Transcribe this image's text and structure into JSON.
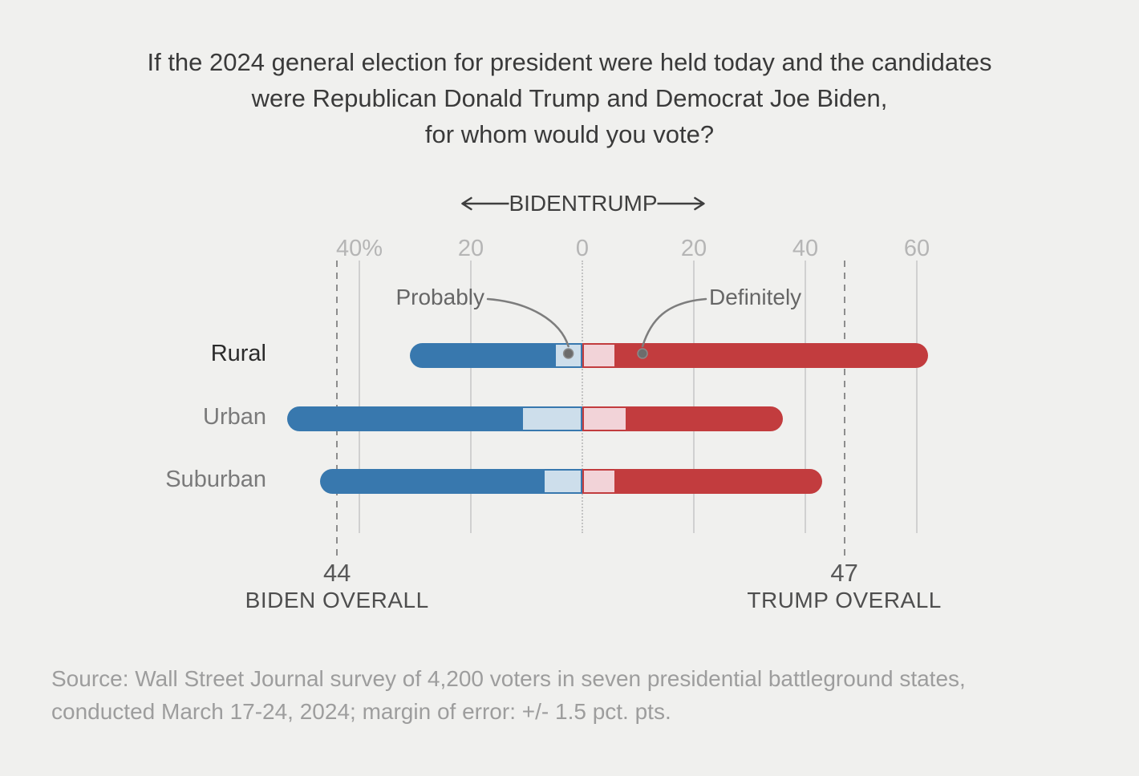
{
  "page": {
    "background": "#f0f0ee"
  },
  "title": {
    "line1": "If the 2024 general election for president were held today and the candidates",
    "line2": "were Republican Donald Trump and Democrat Joe Biden,",
    "line3": "for whom would you vote?"
  },
  "direction_header": {
    "left_label": "BIDEN",
    "right_label": "TRUMP"
  },
  "chart_data": {
    "type": "diverging_bar",
    "unit": "percent",
    "axis": {
      "ticks": [
        {
          "value": -40,
          "label": "40%"
        },
        {
          "value": -20,
          "label": "20"
        },
        {
          "value": 0,
          "label": "0"
        },
        {
          "value": 20,
          "label": "20"
        },
        {
          "value": 40,
          "label": "40"
        },
        {
          "value": 60,
          "label": "60"
        }
      ],
      "xlim": [
        -55,
        65
      ],
      "gridlines": true
    },
    "categories": [
      "Rural",
      "Urban",
      "Suburban"
    ],
    "rows": [
      {
        "label": "Rural",
        "emphasized": true,
        "biden_definitely": 26,
        "biden_probably": 5,
        "trump_probably": 6,
        "trump_definitely": 56,
        "biden_total": 31,
        "trump_total": 62
      },
      {
        "label": "Urban",
        "emphasized": false,
        "biden_definitely": 42,
        "biden_probably": 11,
        "trump_probably": 8,
        "trump_definitely": 28,
        "biden_total": 53,
        "trump_total": 36
      },
      {
        "label": "Suburban",
        "emphasized": false,
        "biden_definitely": 40,
        "biden_probably": 7,
        "trump_probably": 6,
        "trump_definitely": 37,
        "biden_total": 47,
        "trump_total": 43
      }
    ],
    "annotations": [
      {
        "label": "Probably",
        "side": "left",
        "anchor_value": -2.5,
        "points_to": "probably-biden-segment-rural"
      },
      {
        "label": "Definitely",
        "side": "right",
        "anchor_value": 10.8,
        "points_to": "definitely-trump-segment-rural"
      }
    ],
    "overall": [
      {
        "value": "44",
        "label": "BIDEN OVERALL",
        "axis_value": -44
      },
      {
        "value": "47",
        "label": "TRUMP OVERALL",
        "axis_value": 47
      }
    ],
    "colors": {
      "biden_solid": "#3878ae",
      "biden_light": "#cddeeb",
      "trump_solid": "#c23c3e",
      "trump_light": "#f2d3d8"
    }
  },
  "source": {
    "line1": "Source: Wall Street Journal survey of 4,200 voters in seven presidential battleground states,",
    "line2": "conducted March 17-24, 2024; margin of error: +/- 1.5 pct. pts."
  }
}
